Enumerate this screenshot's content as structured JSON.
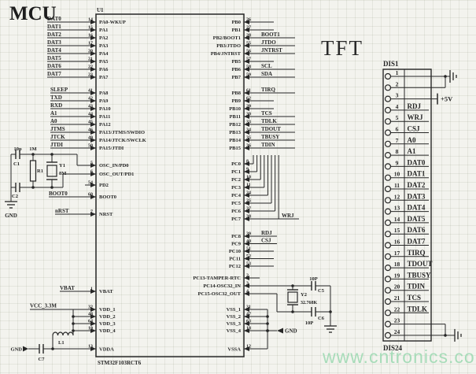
{
  "titles": {
    "mcu": "MCU",
    "tft": "TFT"
  },
  "watermark": "www.cntronics.com",
  "colors": {
    "ink": "#262626",
    "paper": "#f3f3ee",
    "watermark": "#a7dcb9"
  },
  "chip": {
    "refdes": "U1",
    "part": "STM32F103RCT6",
    "port_a_low": [
      {
        "net": "DAT0",
        "pin": "14",
        "name": "PA0-WKUP"
      },
      {
        "net": "DAT1",
        "pin": "15",
        "name": "PA1"
      },
      {
        "net": "DAT2",
        "pin": "16",
        "name": "PA2"
      },
      {
        "net": "DAT3",
        "pin": "17",
        "name": "PA3"
      },
      {
        "net": "DAT4",
        "pin": "20",
        "name": "PA4"
      },
      {
        "net": "DAT5",
        "pin": "21",
        "name": "PA5"
      },
      {
        "net": "DAT6",
        "pin": "22",
        "name": "PA6"
      },
      {
        "net": "DAT7",
        "pin": "23",
        "name": "PA7"
      }
    ],
    "port_a_high": [
      {
        "net": "SLEEP",
        "pin": "41",
        "name": "PA8"
      },
      {
        "net": "TXD",
        "pin": "42",
        "name": "PA9"
      },
      {
        "net": "RXD",
        "pin": "43",
        "name": "PA10"
      },
      {
        "net": "A1",
        "pin": "44",
        "name": "PA11"
      },
      {
        "net": "A0",
        "pin": "45",
        "name": "PA12"
      },
      {
        "net": "JTMS",
        "pin": "46",
        "name": "PA13/JTMS/SWDIO"
      },
      {
        "net": "JTCK",
        "pin": "49",
        "name": "PA14/JTCK/SWCLK"
      },
      {
        "net": "JTDI",
        "pin": "50",
        "name": "PA15/JTDI"
      }
    ],
    "osc_pins": [
      {
        "net": "",
        "pin": "5",
        "name": "OSC_IN/PD0"
      },
      {
        "net": "",
        "pin": "6",
        "name": "OSC_OUT/PD1"
      },
      {
        "net": "",
        "pin": "54",
        "name": "PD2"
      }
    ],
    "boot_pin": [
      {
        "net": "BOOT0",
        "pin": "60",
        "name": "BOOT0"
      }
    ],
    "reset_pin": [
      {
        "net": "nRST",
        "pin": "7",
        "name": "NRST"
      }
    ],
    "vbat_pin": [
      {
        "net": "VBAT",
        "pin": "1",
        "name": "VBAT"
      }
    ],
    "vdd_pins": [
      {
        "pin": "32",
        "name": "VDD_1"
      },
      {
        "pin": "48",
        "name": "VDD_2"
      },
      {
        "pin": "64",
        "name": "VDD_3"
      },
      {
        "pin": "19",
        "name": "VDD_4"
      }
    ],
    "vdda_pin": {
      "pin": "13",
      "name": "VDDA"
    },
    "port_b_low": [
      {
        "net": "",
        "pin": "26",
        "name": "PB0"
      },
      {
        "net": "",
        "pin": "27",
        "name": "PB1"
      },
      {
        "net": "BOOT1",
        "pin": "28",
        "name": "PB2/BOOT1"
      },
      {
        "net": "JTDO",
        "pin": "55",
        "name": "PB3/JTDO"
      },
      {
        "net": "JNTRST",
        "pin": "56",
        "name": "PB4/JNTRST"
      },
      {
        "net": "",
        "pin": "57",
        "name": "PB5"
      },
      {
        "net": "SCL",
        "pin": "58",
        "name": "PB6"
      },
      {
        "net": "SDA",
        "pin": "59",
        "name": "PB7"
      }
    ],
    "port_b_high": [
      {
        "net": "TIRQ",
        "pin": "61",
        "name": "PB8"
      },
      {
        "net": "",
        "pin": "62",
        "name": "PB9"
      },
      {
        "net": "",
        "pin": "29",
        "name": "PB10"
      },
      {
        "net": "TCS",
        "pin": "30",
        "name": "PB11"
      },
      {
        "net": "TDLK",
        "pin": "33",
        "name": "PB12"
      },
      {
        "net": "TDOUT",
        "pin": "34",
        "name": "PB13"
      },
      {
        "net": "TBUSY",
        "pin": "35",
        "name": "PB14"
      },
      {
        "net": "TDIN",
        "pin": "36",
        "name": "PB15"
      }
    ],
    "port_c_low": [
      {
        "net": "",
        "pin": "8",
        "name": "PC0"
      },
      {
        "net": "",
        "pin": "9",
        "name": "PC1"
      },
      {
        "net": "",
        "pin": "10",
        "name": "PC2"
      },
      {
        "net": "",
        "pin": "11",
        "name": "PC3"
      },
      {
        "net": "",
        "pin": "24",
        "name": "PC4"
      },
      {
        "net": "",
        "pin": "25",
        "name": "PC5"
      },
      {
        "net": "",
        "pin": "37",
        "name": "PC6"
      },
      {
        "net": "WRJ",
        "pin": "38",
        "name": "PC7"
      }
    ],
    "port_c_mid": [
      {
        "net": "RDJ",
        "pin": "39",
        "name": "PC8"
      },
      {
        "net": "CSJ",
        "pin": "40",
        "name": "PC9"
      },
      {
        "net": "",
        "pin": "51",
        "name": "PC10"
      },
      {
        "net": "",
        "pin": "52",
        "name": "PC11"
      },
      {
        "net": "",
        "pin": "53",
        "name": "PC12"
      }
    ],
    "port_c_rtc": [
      {
        "net": "",
        "pin": "2",
        "name": "PC13-TAMPER-RTC"
      },
      {
        "net": "",
        "pin": "3",
        "name": "PC14-OSC32_IN"
      },
      {
        "net": "",
        "pin": "4",
        "name": "PC15-OSC32_OUT"
      }
    ],
    "vss_pins": [
      {
        "pin": "31",
        "name": "VSS_1"
      },
      {
        "pin": "47",
        "name": "VSS_2"
      },
      {
        "pin": "63",
        "name": "VSS_3"
      },
      {
        "pin": "18",
        "name": "VSS_4"
      }
    ],
    "vssa_pin": {
      "pin": "12",
      "name": "VSSA"
    }
  },
  "components": {
    "c1": {
      "ref": "C1",
      "val": "10p"
    },
    "r1": {
      "ref": "R1",
      "val": "1M"
    },
    "y1": {
      "ref": "Y1",
      "val": "8M"
    },
    "c2": {
      "ref": "C2"
    },
    "l1": {
      "ref": "L1"
    },
    "c7": {
      "ref": "C7"
    },
    "c5": {
      "ref": "C5",
      "val": "10P"
    },
    "y2": {
      "ref": "Y2",
      "val": "32.768K"
    },
    "c6": {
      "ref": "C6",
      "val": "10P"
    },
    "vcc": "VCC_3.3M",
    "p5v": "+5V",
    "gnd": "GND"
  },
  "tft": {
    "refdes_top": "DIS1",
    "refdes_bottom": "DIS24",
    "pins": [
      {
        "num": "1",
        "net": ""
      },
      {
        "num": "2",
        "net": ""
      },
      {
        "num": "3",
        "net": ""
      },
      {
        "num": "4",
        "net": "RDJ"
      },
      {
        "num": "5",
        "net": "WRJ"
      },
      {
        "num": "6",
        "net": "CSJ"
      },
      {
        "num": "7",
        "net": "A0"
      },
      {
        "num": "8",
        "net": "A1"
      },
      {
        "num": "9",
        "net": "DAT0"
      },
      {
        "num": "10",
        "net": "DAT1"
      },
      {
        "num": "11",
        "net": "DAT2"
      },
      {
        "num": "12",
        "net": "DAT3"
      },
      {
        "num": "13",
        "net": "DAT4"
      },
      {
        "num": "14",
        "net": "DAT5"
      },
      {
        "num": "15",
        "net": "DAT6"
      },
      {
        "num": "16",
        "net": "DAT7"
      },
      {
        "num": "17",
        "net": "TIRQ"
      },
      {
        "num": "18",
        "net": "TDOUT"
      },
      {
        "num": "19",
        "net": "TBUSY"
      },
      {
        "num": "20",
        "net": "TDIN"
      },
      {
        "num": "21",
        "net": "TCS"
      },
      {
        "num": "22",
        "net": "TDLK"
      },
      {
        "num": "23",
        "net": ""
      },
      {
        "num": "24",
        "net": ""
      }
    ]
  }
}
